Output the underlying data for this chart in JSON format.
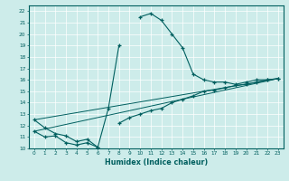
{
  "xlabel": "Humidex (Indice chaleur)",
  "ylabel": "",
  "bg_color": "#cdecea",
  "line_color": "#005f5f",
  "xlim": [
    -0.5,
    23.5
  ],
  "ylim": [
    10,
    22.5
  ],
  "yticks": [
    10,
    11,
    12,
    13,
    14,
    15,
    16,
    17,
    18,
    19,
    20,
    21,
    22
  ],
  "xticks": [
    0,
    1,
    2,
    3,
    4,
    5,
    6,
    7,
    8,
    9,
    10,
    11,
    12,
    13,
    14,
    15,
    16,
    17,
    18,
    19,
    20,
    21,
    22,
    23
  ],
  "curve1_x": [
    0,
    1,
    2,
    3,
    4,
    5,
    6,
    7,
    8,
    9,
    10,
    11,
    12,
    13,
    14,
    15,
    16,
    17,
    18,
    19,
    20,
    21,
    22,
    23
  ],
  "curve1_y": [
    12.5,
    11.8,
    11.3,
    11.1,
    10.6,
    10.8,
    10.1,
    13.5,
    19.0,
    null,
    21.5,
    21.8,
    21.2,
    20.0,
    18.8,
    16.5,
    16.0,
    15.8,
    15.8,
    15.6,
    15.8,
    16.0,
    16.0,
    16.1
  ],
  "curve2_x": [
    0,
    1,
    2,
    3,
    4,
    5,
    6,
    7,
    8,
    9,
    10,
    11,
    12,
    13,
    14,
    15,
    16,
    17,
    18,
    19,
    20,
    21,
    22,
    23
  ],
  "curve2_y": [
    11.5,
    11.0,
    11.1,
    10.5,
    10.3,
    10.5,
    10.1,
    null,
    12.2,
    12.7,
    13.0,
    13.3,
    13.5,
    14.0,
    14.3,
    14.6,
    15.0,
    15.1,
    15.3,
    15.5,
    15.6,
    15.8,
    16.0,
    16.1
  ],
  "trend1_x": [
    0,
    23
  ],
  "trend1_y": [
    11.5,
    16.1
  ],
  "trend2_x": [
    0,
    23
  ],
  "trend2_y": [
    12.5,
    16.1
  ]
}
